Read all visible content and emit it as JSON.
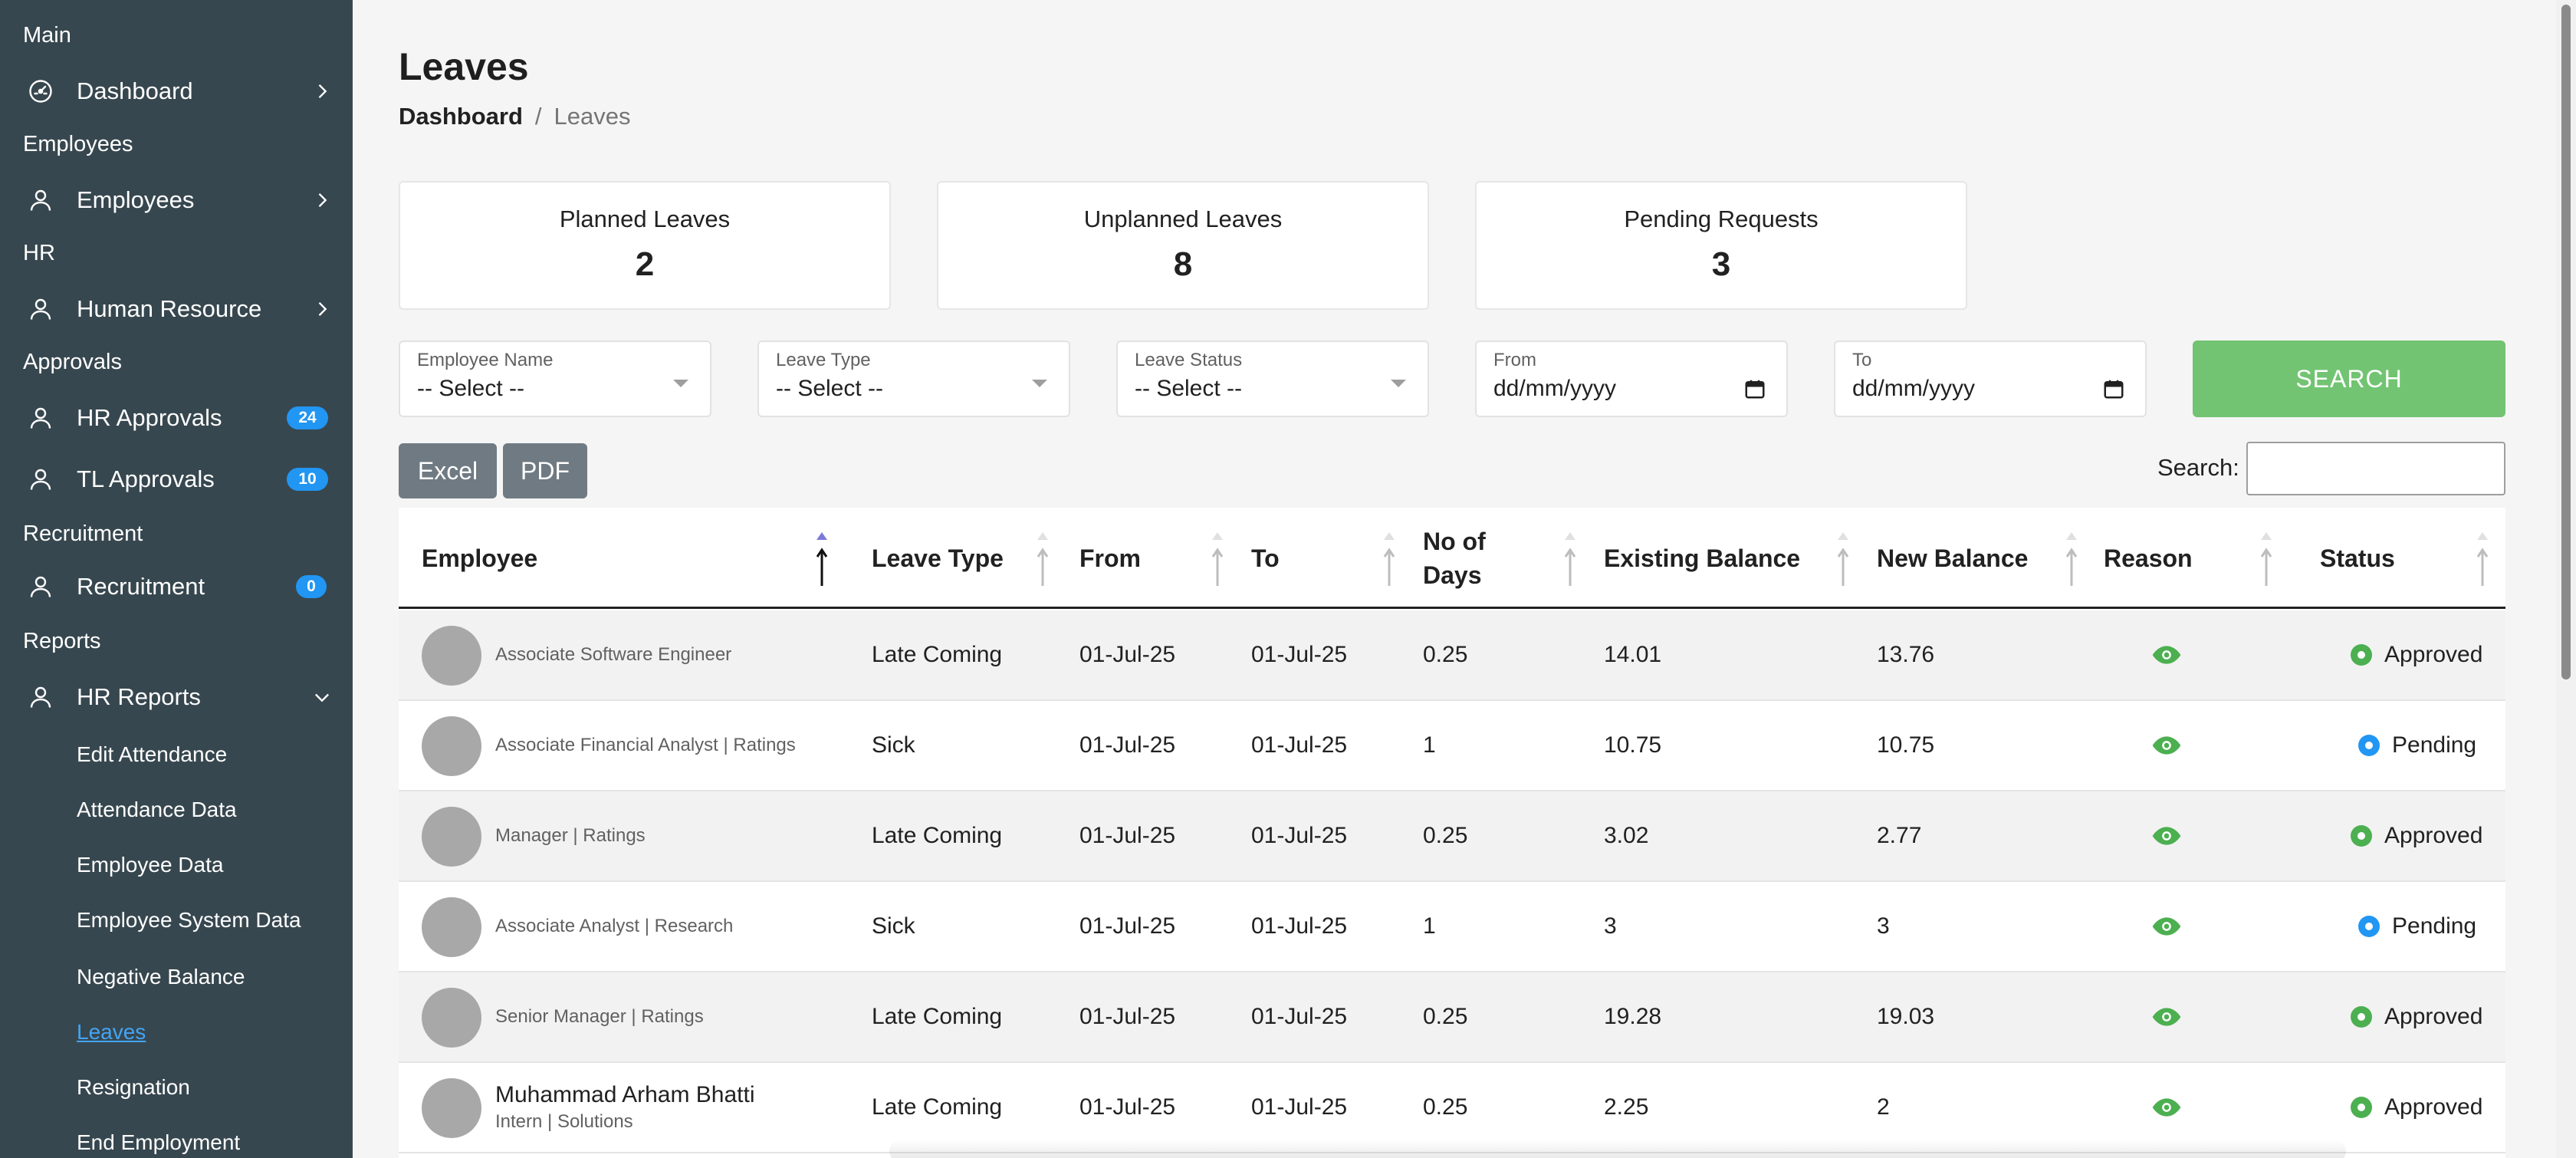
{
  "sidebar": {
    "sections": {
      "main": "Main",
      "employees": "Employees",
      "hr": "HR",
      "approvals": "Approvals",
      "recruitment": "Recruitment",
      "reports": "Reports"
    },
    "items": {
      "dashboard": "Dashboard",
      "employees": "Employees",
      "human_resource": "Human Resource",
      "hr_approvals": "HR Approvals",
      "hr_approvals_badge": "24",
      "tl_approvals": "TL Approvals",
      "tl_approvals_badge": "10",
      "recruitment": "Recruitment",
      "recruitment_badge": "0",
      "hr_reports": "HR Reports"
    },
    "submenu": [
      "Edit Attendance",
      "Attendance Data",
      "Employee Data",
      "Employee System Data",
      "Negative Balance",
      "Leaves",
      "Resignation",
      "End Employment"
    ],
    "active_submenu": "Leaves"
  },
  "page": {
    "title": "Leaves",
    "breadcrumb": {
      "home": "Dashboard",
      "separator": "/",
      "current": "Leaves"
    }
  },
  "stats": [
    {
      "label": "Planned Leaves",
      "value": "2"
    },
    {
      "label": "Unplanned Leaves",
      "value": "8"
    },
    {
      "label": "Pending Requests",
      "value": "3"
    }
  ],
  "filters": {
    "employee_name": {
      "label": "Employee Name",
      "value": "-- Select --"
    },
    "leave_type": {
      "label": "Leave Type",
      "value": "-- Select --"
    },
    "leave_status": {
      "label": "Leave Status",
      "value": "-- Select --"
    },
    "from": {
      "label": "From",
      "value": "dd/mm/yyyy"
    },
    "to": {
      "label": "To",
      "value": "dd/mm/yyyy"
    },
    "search_button": "SEARCH"
  },
  "toolbar": {
    "excel": "Excel",
    "pdf": "PDF",
    "search_label": "Search:",
    "search_value": ""
  },
  "table": {
    "columns": [
      "Employee",
      "Leave Type",
      "From",
      "To",
      "No of Days",
      "Existing Balance",
      "New Balance",
      "Reason",
      "Status"
    ],
    "rows": [
      {
        "name": "",
        "role": "Associate Software Engineer",
        "leave_type": "Late Coming",
        "from": "01-Jul-25",
        "to": "01-Jul-25",
        "days": "0.25",
        "existing": "14.01",
        "new": "13.76",
        "status": "Approved"
      },
      {
        "name": "",
        "role": "Associate Financial Analyst | Ratings",
        "leave_type": "Sick",
        "from": "01-Jul-25",
        "to": "01-Jul-25",
        "days": "1",
        "existing": "10.75",
        "new": "10.75",
        "status": "Pending"
      },
      {
        "name": "",
        "role": "Manager | Ratings",
        "leave_type": "Late Coming",
        "from": "01-Jul-25",
        "to": "01-Jul-25",
        "days": "0.25",
        "existing": "3.02",
        "new": "2.77",
        "status": "Approved"
      },
      {
        "name": "",
        "role": "Associate Analyst | Research",
        "leave_type": "Sick",
        "from": "01-Jul-25",
        "to": "01-Jul-25",
        "days": "1",
        "existing": "3",
        "new": "3",
        "status": "Pending"
      },
      {
        "name": "",
        "role": "Senior Manager | Ratings",
        "leave_type": "Late Coming",
        "from": "01-Jul-25",
        "to": "01-Jul-25",
        "days": "0.25",
        "existing": "19.28",
        "new": "19.03",
        "status": "Approved"
      },
      {
        "name": "Muhammad Arham Bhatti",
        "role": "Intern | Solutions",
        "leave_type": "Late Coming",
        "from": "01-Jul-25",
        "to": "01-Jul-25",
        "days": "0.25",
        "existing": "2.25",
        "new": "2",
        "status": "Approved"
      }
    ]
  },
  "colors": {
    "sidebar_bg": "#37474f",
    "badge": "#2196f3",
    "search_button": "#72c472",
    "approved": "#4caf50",
    "pending": "#2196f3",
    "eye_icon": "#4caf50"
  }
}
